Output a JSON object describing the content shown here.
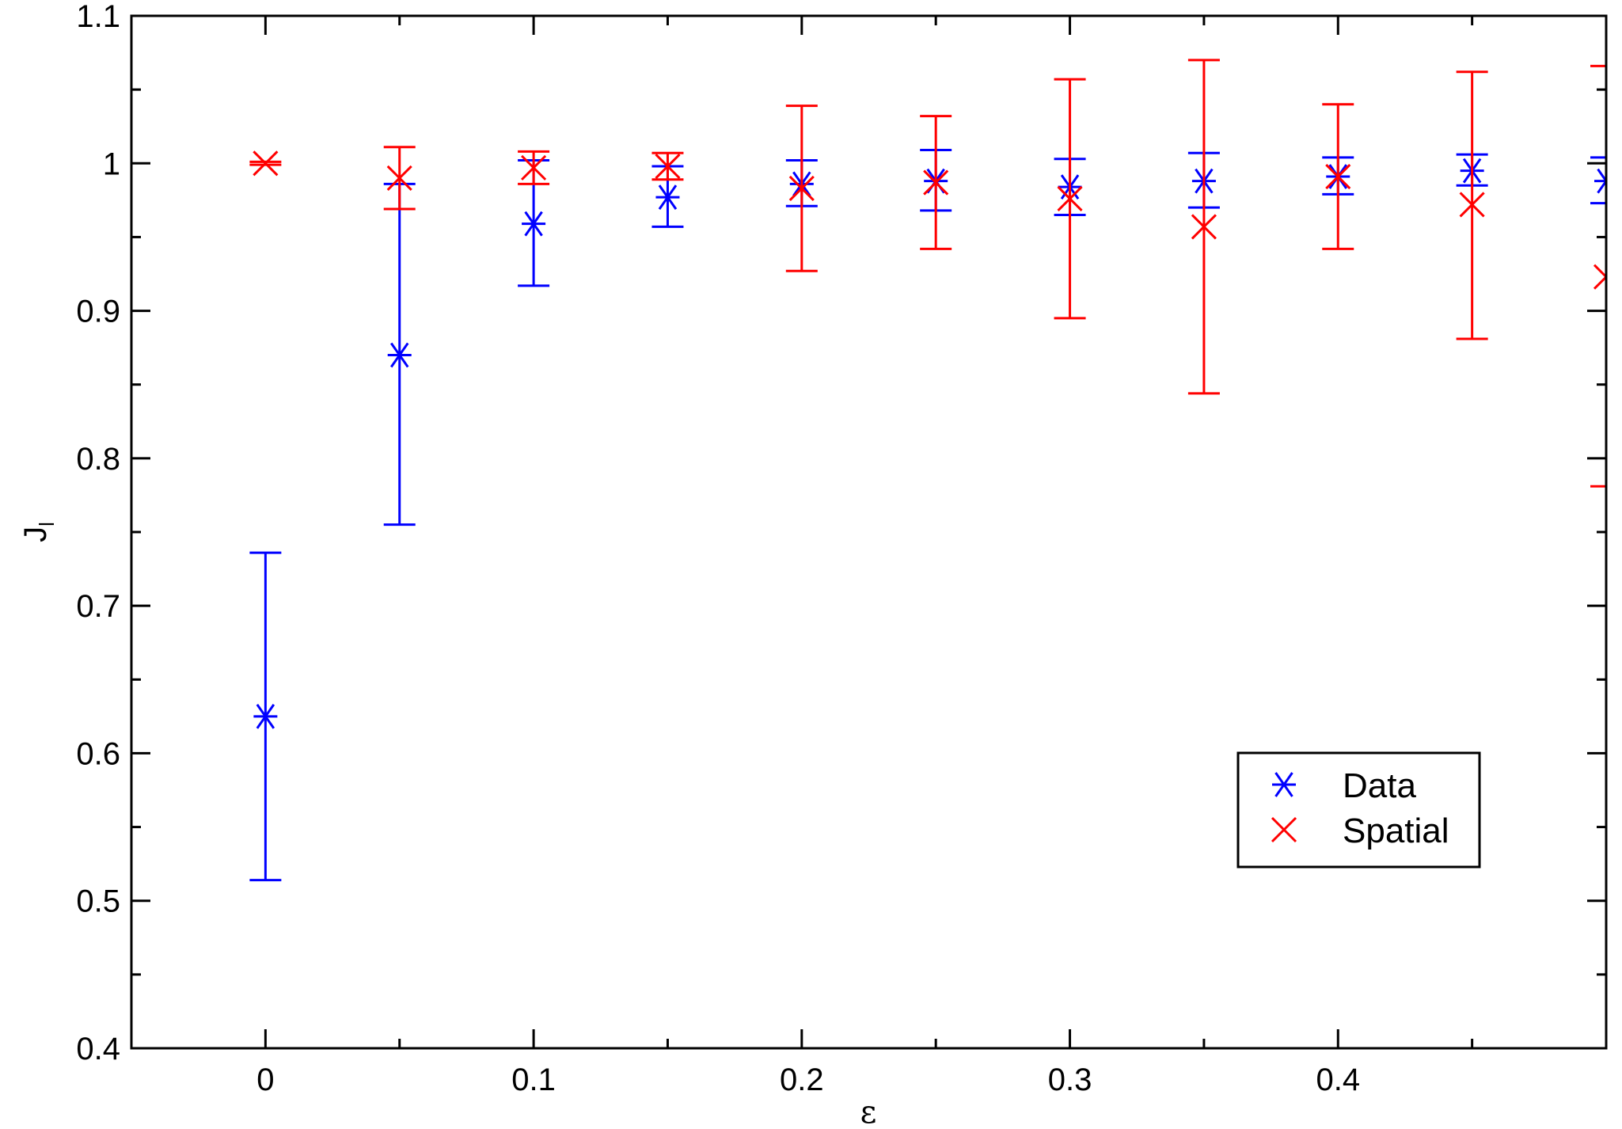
{
  "chart_data": {
    "type": "scatter",
    "title": "",
    "xlabel": "ε",
    "ylabel": "J",
    "ylabel_sub": "l",
    "xlim": [
      -0.05,
      0.5
    ],
    "ylim": [
      0.4,
      1.1
    ],
    "x_ticks": [
      0,
      0.1,
      0.2,
      0.3,
      0.4
    ],
    "x_tick_labels": [
      "0",
      "0.1",
      "0.2",
      "0.3",
      "0.4"
    ],
    "y_ticks": [
      0.4,
      0.5,
      0.6,
      0.7,
      0.8,
      0.9,
      1.0,
      1.1
    ],
    "y_tick_labels": [
      "0.4",
      "0.5",
      "0.6",
      "0.7",
      "0.8",
      "0.9",
      "1",
      "1.1"
    ],
    "grid": false,
    "legend_position": "bottom-right",
    "series": [
      {
        "name": "Data",
        "marker": "asterisk",
        "color": "#0000ff",
        "points": [
          {
            "x": 0.0,
            "y": 0.625,
            "lo": 0.514,
            "hi": 0.736
          },
          {
            "x": 0.05,
            "y": 0.87,
            "lo": 0.755,
            "hi": 0.986
          },
          {
            "x": 0.1,
            "y": 0.959,
            "lo": 0.917,
            "hi": 1.002
          },
          {
            "x": 0.15,
            "y": 0.977,
            "lo": 0.957,
            "hi": 0.998
          },
          {
            "x": 0.2,
            "y": 0.986,
            "lo": 0.971,
            "hi": 1.002
          },
          {
            "x": 0.25,
            "y": 0.988,
            "lo": 0.968,
            "hi": 1.009
          },
          {
            "x": 0.3,
            "y": 0.984,
            "lo": 0.965,
            "hi": 1.003
          },
          {
            "x": 0.35,
            "y": 0.988,
            "lo": 0.97,
            "hi": 1.007
          },
          {
            "x": 0.4,
            "y": 0.991,
            "lo": 0.979,
            "hi": 1.004
          },
          {
            "x": 0.45,
            "y": 0.995,
            "lo": 0.985,
            "hi": 1.006
          },
          {
            "x": 0.5,
            "y": 0.988,
            "lo": 0.973,
            "hi": 1.004
          }
        ]
      },
      {
        "name": "Spatial",
        "marker": "x",
        "color": "#ff0000",
        "points": [
          {
            "x": 0.0,
            "y": 1.0,
            "lo": 0.999,
            "hi": 1.001
          },
          {
            "x": 0.05,
            "y": 0.99,
            "lo": 0.969,
            "hi": 1.011
          },
          {
            "x": 0.1,
            "y": 0.997,
            "lo": 0.986,
            "hi": 1.008
          },
          {
            "x": 0.15,
            "y": 0.998,
            "lo": 0.989,
            "hi": 1.007
          },
          {
            "x": 0.2,
            "y": 0.983,
            "lo": 0.927,
            "hi": 1.039
          },
          {
            "x": 0.25,
            "y": 0.987,
            "lo": 0.942,
            "hi": 1.032
          },
          {
            "x": 0.3,
            "y": 0.976,
            "lo": 0.895,
            "hi": 1.057
          },
          {
            "x": 0.35,
            "y": 0.957,
            "lo": 0.844,
            "hi": 1.07
          },
          {
            "x": 0.4,
            "y": 0.991,
            "lo": 0.942,
            "hi": 1.04
          },
          {
            "x": 0.45,
            "y": 0.972,
            "lo": 0.881,
            "hi": 1.062
          },
          {
            "x": 0.5,
            "y": 0.923,
            "lo": 0.781,
            "hi": 1.066
          }
        ]
      }
    ]
  }
}
